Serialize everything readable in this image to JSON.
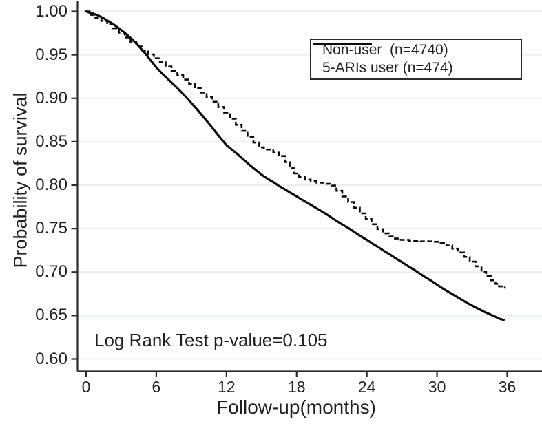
{
  "chart_data": {
    "type": "line",
    "subtype": "kaplan-meier-survival",
    "title": "",
    "xlabel": "Follow-up(months)",
    "ylabel": "Probability of survival",
    "xlim": [
      0,
      36
    ],
    "ylim": [
      0.6,
      1.0
    ],
    "x_ticks": [
      0,
      6,
      12,
      18,
      24,
      30,
      36
    ],
    "y_ticks": [
      "1.00",
      "0.95",
      "0.90",
      "0.85",
      "0.80",
      "0.75",
      "0.70",
      "0.65",
      "0.60"
    ],
    "grid": "horizontal",
    "legend_position": "top-right",
    "annotation": "Log Rank Test p-value=0.105",
    "series": [
      {
        "name": "Non-user  (n=4740)",
        "n": 4740,
        "style": "solid",
        "step": false,
        "points": [
          [
            0,
            1.0
          ],
          [
            0.3,
            0.9985
          ],
          [
            0.6,
            0.9975
          ],
          [
            1,
            0.9955
          ],
          [
            1.5,
            0.992
          ],
          [
            2,
            0.988
          ],
          [
            2.5,
            0.9835
          ],
          [
            3,
            0.9785
          ],
          [
            3.5,
            0.973
          ],
          [
            4,
            0.967
          ],
          [
            4.5,
            0.96
          ],
          [
            5,
            0.9525
          ],
          [
            5.5,
            0.944
          ],
          [
            6,
            0.9355
          ],
          [
            6.5,
            0.9285
          ],
          [
            7,
            0.922
          ],
          [
            7.5,
            0.9155
          ],
          [
            8,
            0.909
          ],
          [
            8.5,
            0.902
          ],
          [
            9,
            0.8945
          ],
          [
            9.5,
            0.887
          ],
          [
            10,
            0.879
          ],
          [
            10.5,
            0.871
          ],
          [
            11,
            0.8625
          ],
          [
            11.5,
            0.854
          ],
          [
            12,
            0.846
          ],
          [
            12.5,
            0.8405
          ],
          [
            13,
            0.835
          ],
          [
            13.5,
            0.829
          ],
          [
            14,
            0.823
          ],
          [
            14.5,
            0.8175
          ],
          [
            15,
            0.812
          ],
          [
            15.5,
            0.8075
          ],
          [
            16,
            0.8035
          ],
          [
            16.5,
            0.799
          ],
          [
            17,
            0.795
          ],
          [
            17.5,
            0.791
          ],
          [
            18,
            0.787
          ],
          [
            18.5,
            0.783
          ],
          [
            19,
            0.779
          ],
          [
            19.5,
            0.775
          ],
          [
            20,
            0.771
          ],
          [
            20.5,
            0.767
          ],
          [
            21,
            0.7625
          ],
          [
            21.5,
            0.758
          ],
          [
            22,
            0.754
          ],
          [
            22.5,
            0.75
          ],
          [
            23,
            0.7455
          ],
          [
            23.5,
            0.741
          ],
          [
            24,
            0.737
          ],
          [
            24.5,
            0.7325
          ],
          [
            25,
            0.7285
          ],
          [
            25.5,
            0.724
          ],
          [
            26,
            0.72
          ],
          [
            26.5,
            0.7155
          ],
          [
            27,
            0.7115
          ],
          [
            27.5,
            0.707
          ],
          [
            28,
            0.703
          ],
          [
            28.5,
            0.6985
          ],
          [
            29,
            0.694
          ],
          [
            29.5,
            0.69
          ],
          [
            30,
            0.6855
          ],
          [
            30.5,
            0.681
          ],
          [
            31,
            0.677
          ],
          [
            31.5,
            0.673
          ],
          [
            32,
            0.669
          ],
          [
            32.5,
            0.665
          ],
          [
            33,
            0.6615
          ],
          [
            33.5,
            0.658
          ],
          [
            34,
            0.6545
          ],
          [
            34.5,
            0.6515
          ],
          [
            35,
            0.6485
          ],
          [
            35.4,
            0.646
          ],
          [
            35.7,
            0.645
          ]
        ]
      },
      {
        "name": "5-ARIs user (n=474)",
        "n": 474,
        "style": "dashed",
        "step": true,
        "points": [
          [
            0,
            1.0
          ],
          [
            0.3,
            0.996
          ],
          [
            0.8,
            0.9925
          ],
          [
            1.3,
            0.989
          ],
          [
            1.8,
            0.985
          ],
          [
            2.3,
            0.9805
          ],
          [
            2.8,
            0.9755
          ],
          [
            3.3,
            0.97
          ],
          [
            3.8,
            0.9645
          ],
          [
            4.3,
            0.9595
          ],
          [
            4.8,
            0.955
          ],
          [
            5.3,
            0.9505
          ],
          [
            5.8,
            0.946
          ],
          [
            6.3,
            0.9415
          ],
          [
            6.8,
            0.9365
          ],
          [
            7.3,
            0.9315
          ],
          [
            7.8,
            0.9265
          ],
          [
            8.3,
            0.9215
          ],
          [
            8.8,
            0.9165
          ],
          [
            9.3,
            0.9115
          ],
          [
            9.8,
            0.9065
          ],
          [
            10.3,
            0.9015
          ],
          [
            10.8,
            0.896
          ],
          [
            11.3,
            0.89
          ],
          [
            11.8,
            0.8835
          ],
          [
            12.3,
            0.8765
          ],
          [
            12.8,
            0.8695
          ],
          [
            13.3,
            0.8625
          ],
          [
            13.8,
            0.8555
          ],
          [
            14.3,
            0.849
          ],
          [
            14.8,
            0.8435
          ],
          [
            15.2,
            0.841
          ],
          [
            16.0,
            0.8375
          ],
          [
            16.5,
            0.8335
          ],
          [
            17.0,
            0.8265
          ],
          [
            17.4,
            0.8195
          ],
          [
            17.8,
            0.8135
          ],
          [
            18.2,
            0.8095
          ],
          [
            18.7,
            0.8065
          ],
          [
            19.2,
            0.8045
          ],
          [
            19.7,
            0.8028
          ],
          [
            20.3,
            0.8015
          ],
          [
            21.0,
            0.7995
          ],
          [
            21.4,
            0.7935
          ],
          [
            21.9,
            0.787
          ],
          [
            22.4,
            0.7805
          ],
          [
            22.9,
            0.774
          ],
          [
            23.4,
            0.7675
          ],
          [
            23.9,
            0.761
          ],
          [
            24.4,
            0.755
          ],
          [
            24.9,
            0.7495
          ],
          [
            25.4,
            0.7445
          ],
          [
            25.9,
            0.741
          ],
          [
            26.4,
            0.7385
          ],
          [
            26.9,
            0.737
          ],
          [
            27.6,
            0.736
          ],
          [
            28.6,
            0.7353
          ],
          [
            29.6,
            0.7348
          ],
          [
            30.3,
            0.7335
          ],
          [
            30.8,
            0.7305
          ],
          [
            31.3,
            0.727
          ],
          [
            31.8,
            0.7225
          ],
          [
            32.3,
            0.7175
          ],
          [
            32.8,
            0.712
          ],
          [
            33.3,
            0.7065
          ],
          [
            33.8,
            0.7005
          ],
          [
            34.2,
            0.6955
          ],
          [
            34.6,
            0.6905
          ],
          [
            35.0,
            0.6865
          ],
          [
            35.3,
            0.6835
          ],
          [
            35.8,
            0.681
          ]
        ]
      }
    ]
  },
  "colors": {
    "background": "#ffffff",
    "curve": "#0a0a0a",
    "axis": "#2b2b2b",
    "grid": "#e9efef",
    "text": "#231f20",
    "legend_border": "#2a2a2a"
  }
}
